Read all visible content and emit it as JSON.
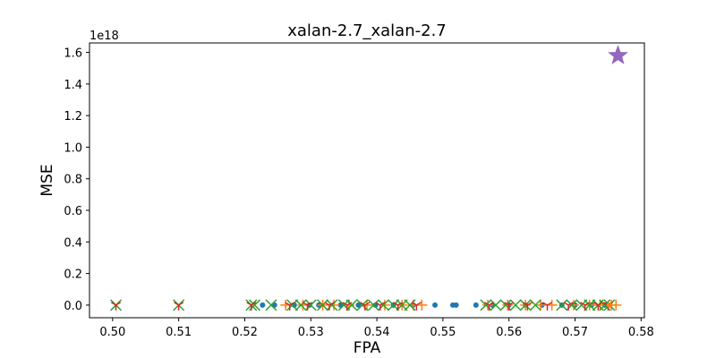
{
  "chart_data": {
    "type": "scatter",
    "title": "xalan-2.7_xalan-2.7",
    "xlabel": "FPA",
    "ylabel": "MSE",
    "y_offset_label": "1e18",
    "xlim": [
      0.4965,
      0.5805
    ],
    "ylim": [
      -0.08,
      1.66
    ],
    "x_ticks": [
      0.5,
      0.51,
      0.52,
      0.53,
      0.54,
      0.55,
      0.56,
      0.57,
      0.58
    ],
    "x_tick_labels": [
      "0.50",
      "0.51",
      "0.52",
      "0.53",
      "0.54",
      "0.55",
      "0.56",
      "0.57",
      "0.58"
    ],
    "y_ticks": [
      0.0,
      0.2,
      0.4,
      0.6,
      0.8,
      1.0,
      1.2,
      1.4,
      1.6
    ],
    "y_tick_labels": [
      "0.0",
      "0.2",
      "0.4",
      "0.6",
      "0.8",
      "1.0",
      "1.2",
      "1.4",
      "1.6"
    ],
    "grid": false,
    "series": [
      {
        "marker": "circle",
        "color": "#1f77b4",
        "x": [
          0.5227,
          0.5245,
          0.5275,
          0.5298,
          0.5312,
          0.5345,
          0.5372,
          0.5398,
          0.5425,
          0.5455,
          0.5488,
          0.5515,
          0.552,
          0.555,
          0.5575,
          0.56,
          0.5625,
          0.565,
          0.568,
          0.57,
          0.5725,
          0.5745
        ],
        "y": [
          0,
          0,
          0,
          0,
          0,
          0,
          0,
          0,
          0,
          0,
          0,
          0,
          0,
          0,
          0,
          0,
          0,
          0,
          0,
          0,
          0,
          0
        ]
      },
      {
        "marker": "plus",
        "color": "#ff7f0e",
        "x": [
          0.5262,
          0.5288,
          0.5318,
          0.5335,
          0.5358,
          0.5385,
          0.5412,
          0.5438,
          0.5455,
          0.5468,
          0.5568,
          0.5598,
          0.5625,
          0.5648,
          0.5665,
          0.5698,
          0.5722,
          0.5738,
          0.5755,
          0.5762
        ],
        "y": [
          0,
          0,
          0,
          0,
          0,
          0,
          0,
          0,
          0,
          0,
          0,
          0,
          0,
          0,
          0,
          0,
          0,
          0,
          0,
          0
        ]
      },
      {
        "marker": "x",
        "color": "#2ca02c",
        "x": [
          0.5005,
          0.51,
          0.521,
          0.5215,
          0.524,
          0.5272,
          0.5285,
          0.53,
          0.5318,
          0.5332,
          0.535,
          0.5362,
          0.5378,
          0.5395,
          0.541,
          0.5425,
          0.5438,
          0.545,
          0.5565,
          0.558,
          0.5595,
          0.561,
          0.5625,
          0.564,
          0.568,
          0.5695,
          0.571,
          0.5722,
          0.5735,
          0.5745,
          0.5752
        ],
        "y": [
          0,
          0,
          0,
          0,
          0,
          0,
          0,
          0,
          0,
          0,
          0,
          0,
          0,
          0,
          0,
          0,
          0,
          0,
          0,
          0,
          0,
          0,
          0,
          0,
          0,
          0,
          0,
          0,
          0,
          0,
          0
        ]
      },
      {
        "marker": "tri_down",
        "color": "#d62728",
        "x": [
          0.5005,
          0.51,
          0.521,
          0.5268,
          0.5295,
          0.5328,
          0.5355,
          0.5382,
          0.5405,
          0.5432,
          0.546,
          0.557,
          0.56,
          0.5628,
          0.5658,
          0.569,
          0.5715,
          0.5735,
          0.575
        ],
        "y": [
          0,
          0,
          0,
          0,
          0,
          0,
          0,
          0,
          0,
          0,
          0,
          0,
          0,
          0,
          0,
          0,
          0,
          0,
          0
        ]
      },
      {
        "marker": "star",
        "color": "#9467bd",
        "x": [
          0.5765
        ],
        "y": [
          1.58
        ]
      },
      {
        "marker": "circle",
        "color": "#ff7f0e",
        "x": [
          0.5752
        ],
        "y": [
          0
        ]
      }
    ]
  }
}
